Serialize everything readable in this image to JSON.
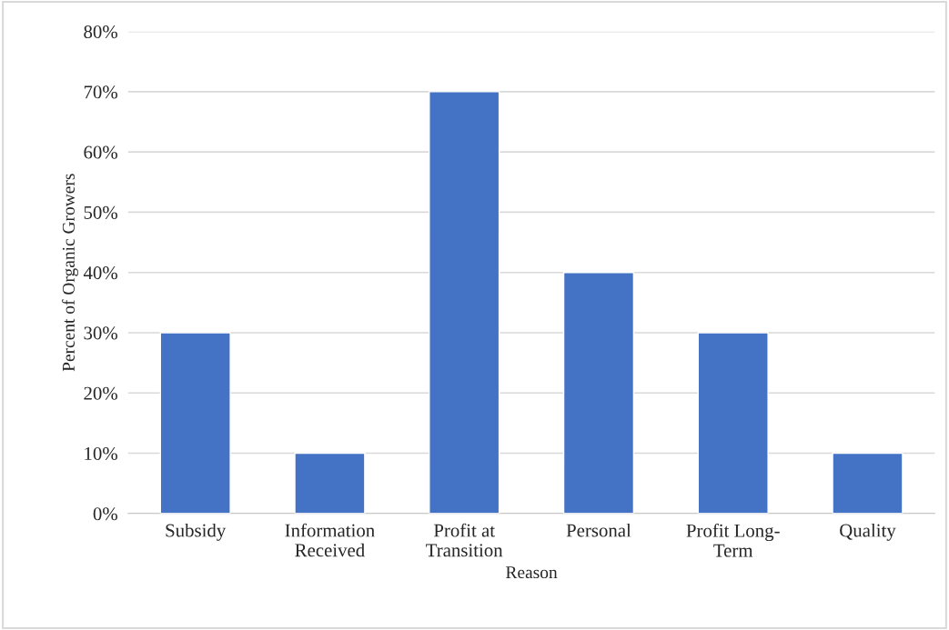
{
  "chart_data": {
    "type": "bar",
    "xlabel": "Reason",
    "ylabel": "Percent of Organic Growers",
    "categories": [
      "Subsidy",
      "Information\nReceived",
      "Profit at\nTransition",
      "Personal",
      "Profit Long-\nTerm",
      "Quality"
    ],
    "values": [
      30,
      10,
      70,
      40,
      30,
      10
    ],
    "color": "#4472c4",
    "ylim": [
      0,
      80
    ],
    "yticks": [
      {
        "value": 0,
        "label": "0%"
      },
      {
        "value": 10,
        "label": "10%"
      },
      {
        "value": 20,
        "label": "20%"
      },
      {
        "value": 30,
        "label": "30%"
      },
      {
        "value": 40,
        "label": "40%"
      },
      {
        "value": 50,
        "label": "50%"
      },
      {
        "value": 60,
        "label": "60%"
      },
      {
        "value": 70,
        "label": "70%"
      },
      {
        "value": 80,
        "label": "80%"
      }
    ],
    "grid": "y"
  }
}
